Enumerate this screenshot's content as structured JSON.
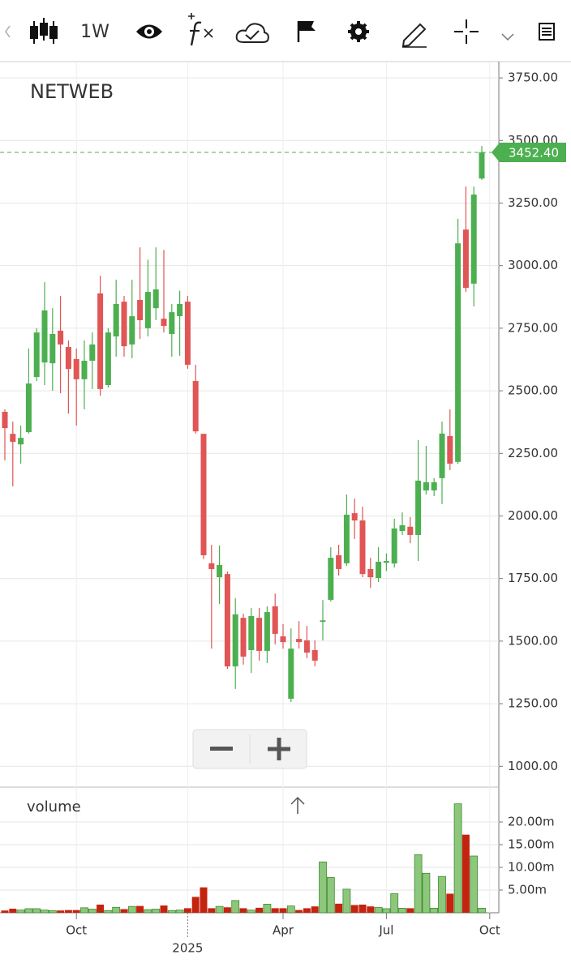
{
  "toolbar": {
    "interval": "1W"
  },
  "chart_data": [
    {
      "type": "candlestick",
      "title": "NETWEB",
      "open": [
        2416,
        2328,
        2286,
        2335,
        2555,
        2613,
        2610,
        2740,
        2675,
        2627,
        2546,
        2620,
        2889,
        2523,
        2717,
        2856,
        2685,
        2863,
        2750,
        2830,
        2788,
        2727,
        2798,
        2856,
        2539,
        2328,
        1811,
        1755,
        1768,
        1399,
        1593,
        1464,
        1593,
        1461,
        1639,
        1519,
        1270,
        1509,
        1503,
        1464,
        1577,
        1665,
        1843,
        1811,
        2011,
        1982,
        1788,
        1752,
        1813,
        1810,
        1940,
        1957,
        1924,
        2102,
        2102,
        2151,
        2319,
        2216,
        3144,
        2928,
        3348,
        null
      ],
      "high": [
        2426,
        2377,
        2361,
        2669,
        2750,
        2934,
        2830,
        2879,
        2701,
        2669,
        2701,
        2733,
        2960,
        2750,
        2944,
        2879,
        2944,
        3073,
        3024,
        3073,
        3063,
        2847,
        2900,
        2879,
        2604,
        2328,
        1885,
        1882,
        1778,
        1671,
        1610,
        1632,
        1632,
        1639,
        1690,
        1568,
        1551,
        1580,
        1561,
        1503,
        1664,
        1875,
        1885,
        2086,
        2069,
        2037,
        1833,
        1875,
        1850,
        1989,
        2014,
        1995,
        2303,
        2280,
        2151,
        2377,
        2426,
        3187,
        3316,
        3316,
        3478,
        null
      ],
      "low": [
        2222,
        2118,
        2209,
        2329,
        2539,
        2523,
        2500,
        2490,
        2409,
        2361,
        2426,
        2507,
        2481,
        2513,
        2636,
        2636,
        2630,
        2707,
        2717,
        2782,
        2733,
        2636,
        2640,
        2588,
        2329,
        1827,
        1470,
        1649,
        1389,
        1309,
        1406,
        1373,
        1422,
        1412,
        1487,
        1470,
        1257,
        1470,
        1432,
        1399,
        1503,
        1658,
        1762,
        1801,
        1908,
        1755,
        1713,
        1736,
        1780,
        1794,
        1924,
        1891,
        1820,
        2086,
        2079,
        2047,
        2183,
        2209,
        2895,
        2837,
        3342,
        null
      ],
      "close": [
        2351,
        2296,
        2312,
        2529,
        2733,
        2821,
        2727,
        2685,
        2587,
        2546,
        2620,
        2685,
        2507,
        2733,
        2847,
        2678,
        2798,
        2782,
        2895,
        2905,
        2759,
        2814,
        2847,
        2604,
        2338,
        1843,
        1788,
        1804,
        1399,
        1607,
        1438,
        1600,
        1461,
        1616,
        1529,
        1496,
        1470,
        1496,
        1454,
        1422,
        1583,
        1833,
        1788,
        2005,
        1982,
        1768,
        1755,
        1817,
        1820,
        1950,
        1963,
        1924,
        2141,
        2135,
        2135,
        2329,
        2209,
        3089,
        2911,
        3284,
        3452.4,
        null
      ],
      "last_label": "3452.40",
      "up_color": "#4caf50",
      "down_color": "#e05555",
      "ylim": [
        920,
        3815
      ],
      "yticks": [
        {
          "value": 1000,
          "label": "1000.00"
        },
        {
          "value": 1250,
          "label": "1250.00"
        },
        {
          "value": 1500,
          "label": "1500.00"
        },
        {
          "value": 1750,
          "label": "1750.00"
        },
        {
          "value": 2000,
          "label": "2000.00"
        },
        {
          "value": 2250,
          "label": "2250.00"
        },
        {
          "value": 2500,
          "label": "2500.00"
        },
        {
          "value": 2750,
          "label": "2750.00"
        },
        {
          "value": 3000,
          "label": "3000.00"
        },
        {
          "value": 3250,
          "label": "3250.00"
        },
        {
          "value": 3500,
          "label": "3500.00"
        },
        {
          "value": 3750,
          "label": "3750.00"
        }
      ],
      "grid": true
    },
    {
      "type": "bar",
      "title": "volume",
      "categories": [
        null,
        null,
        null,
        null,
        null,
        null,
        null,
        null,
        null,
        "Oct",
        null,
        null,
        null,
        null,
        null,
        null,
        null,
        null,
        null,
        null,
        null,
        null,
        null,
        "2025",
        null,
        null,
        null,
        null,
        null,
        null,
        null,
        null,
        null,
        null,
        null,
        "Apr",
        null,
        null,
        null,
        null,
        null,
        null,
        null,
        null,
        null,
        null,
        null,
        null,
        "Jul",
        null,
        null,
        null,
        null,
        null,
        null,
        null,
        null,
        null,
        null,
        null,
        null,
        "Oct"
      ],
      "values": [
        0.5,
        0.9,
        0.6,
        0.9,
        0.9,
        0.6,
        0.5,
        0.5,
        0.6,
        0.6,
        1.1,
        0.8,
        1.8,
        0.5,
        1.2,
        0.8,
        1.4,
        1.5,
        0.7,
        0.8,
        1.6,
        0.5,
        0.6,
        1.0,
        3.5,
        5.6,
        1.0,
        1.4,
        1.2,
        2.7,
        1.0,
        0.6,
        1.1,
        1.9,
        1.0,
        1.0,
        1.5,
        0.6,
        1.0,
        1.4,
        11.2,
        7.8,
        2.0,
        5.2,
        1.7,
        1.8,
        1.4,
        1.2,
        0.9,
        4.2,
        1.0,
        1.0,
        12.8,
        8.7,
        1.0,
        8.0,
        4.2,
        24.0,
        17.2,
        12.5,
        1.0,
        null
      ],
      "up_color": "#8dc77b",
      "down_color": "#c4230f",
      "ylim": [
        0,
        27.5
      ],
      "yticks": [
        {
          "value": 5,
          "label": "5.00m"
        },
        {
          "value": 10,
          "label": "10.00m"
        },
        {
          "value": 15,
          "label": "15.00m"
        },
        {
          "value": 20,
          "label": "20.00m"
        }
      ],
      "grid": true
    }
  ]
}
